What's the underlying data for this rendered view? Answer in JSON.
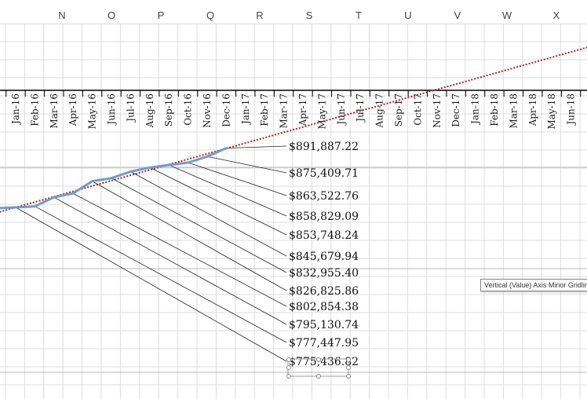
{
  "sheet": {
    "columns": [
      "N",
      "O",
      "P",
      "Q",
      "R",
      "S",
      "T",
      "U",
      "V",
      "W",
      "X"
    ]
  },
  "chart_data": {
    "type": "line",
    "x_tick_labels": [
      "Jan-16",
      "Feb-16",
      "Mar-16",
      "Apr-16",
      "May-16",
      "Jun-16",
      "Jul-16",
      "Aug-16",
      "Sep-16",
      "Oct-16",
      "Nov-16",
      "Dec-16",
      "Jan-17",
      "Feb-17",
      "Mar-17",
      "Apr-17",
      "May-17",
      "Jun-17",
      "Jul-17",
      "Aug-17",
      "Sep-17",
      "Oct-17",
      "Nov-17",
      "Dec-17",
      "Jan-18",
      "Feb-18",
      "Mar-18",
      "Apr-18",
      "May-18",
      "Jun-18"
    ],
    "series": [
      {
        "x": [
          "Jan-16",
          "Feb-16",
          "Mar-16",
          "Apr-16",
          "May-16",
          "Jun-16",
          "Jul-16",
          "Aug-16",
          "Sep-16",
          "Oct-16",
          "Nov-16",
          "Dec-16"
        ],
        "values": [
          775436.82,
          777447.95,
          795130.74,
          802854.38,
          826825.86,
          832955.4,
          845679.94,
          853748.24,
          858829.09,
          863522.76,
          875409.71,
          891887.22
        ],
        "color": "#6f9cc9"
      }
    ],
    "data_labels": [
      "$775,436.82",
      "$777,447.95",
      "$795,130.74",
      "$802,854.38",
      "$826,825.86",
      "$832,955.40",
      "$845,679.94",
      "$853,748.24",
      "$858,829.09",
      "$863,522.76",
      "$875,409.71",
      "$891,887.22"
    ],
    "trendline": {
      "style": "dotted",
      "color": "#b22222"
    },
    "grid": true,
    "tooltip": "Vertical (Value) Axis Minor Gridlines"
  }
}
